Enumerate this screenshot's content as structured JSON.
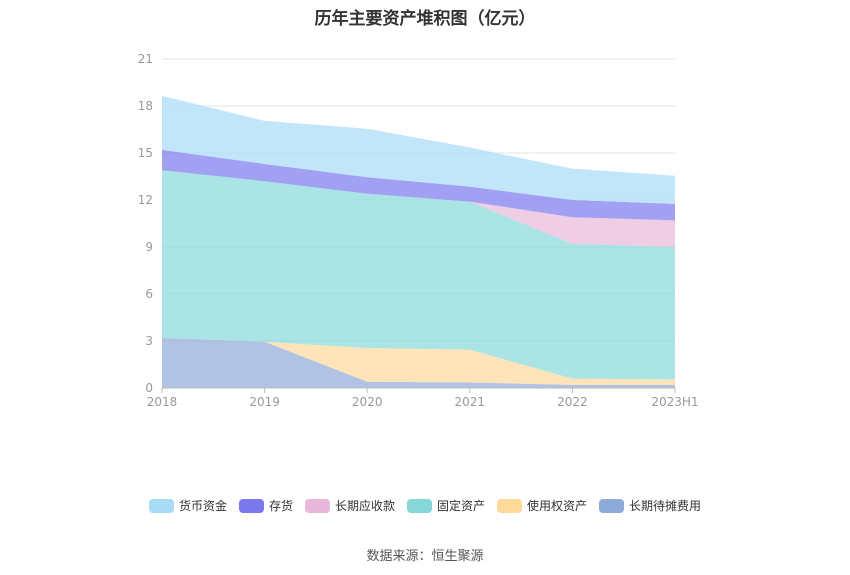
{
  "chart_data": {
    "type": "area",
    "stacked": true,
    "title": "历年主要资产堆积图（亿元）",
    "categories": [
      "2018",
      "2019",
      "2020",
      "2021",
      "2022",
      "2023H1"
    ],
    "ylim": [
      0,
      21
    ],
    "yticks": [
      "0",
      "3",
      "6",
      "9",
      "12",
      "15",
      "18",
      "21"
    ],
    "grid": true,
    "legend_position": "bottom",
    "series": [
      {
        "name": "长期待摊费用",
        "color": "#8eaad8",
        "values": [
          3.2,
          2.95,
          0.4,
          0.35,
          0.2,
          0.2
        ]
      },
      {
        "name": "使用权资产",
        "color": "#fdd99a",
        "values": [
          0.0,
          0.0,
          2.15,
          2.1,
          0.4,
          0.35
        ]
      },
      {
        "name": "固定资产",
        "color": "#86d8d8",
        "values": [
          10.7,
          10.25,
          9.85,
          9.45,
          8.6,
          8.45
        ]
      },
      {
        "name": "长期应收款",
        "color": "#e8b8da",
        "values": [
          0.0,
          0.0,
          0.0,
          0.0,
          1.7,
          1.7
        ]
      },
      {
        "name": "存货",
        "color": "#7b78ee",
        "values": [
          1.3,
          1.1,
          1.05,
          0.95,
          1.1,
          1.05
        ]
      },
      {
        "name": "货币资金",
        "color": "#a8dcf6",
        "values": [
          3.45,
          2.75,
          3.1,
          2.5,
          2.0,
          1.8
        ]
      }
    ],
    "legend_order": [
      "货币资金",
      "存货",
      "长期应收款",
      "固定资产",
      "使用权资产",
      "长期待摊费用"
    ]
  },
  "source": "数据来源：恒生聚源"
}
